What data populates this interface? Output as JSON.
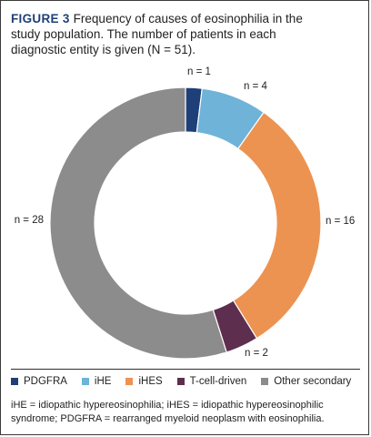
{
  "figure": {
    "label": "FIGURE 3",
    "caption": "Frequency of causes of eosinophilia in the study population. The number of patients in each diagnostic entity is given (N = 51)."
  },
  "chart_data": {
    "type": "pie",
    "style": "donut",
    "categories": [
      "PDGFRA",
      "iHE",
      "iHES",
      "T-cell-driven",
      "Other secondary"
    ],
    "values": [
      1,
      4,
      16,
      2,
      28
    ],
    "slice_labels": [
      "n = 1",
      "n = 4",
      "n = 16",
      "n = 2",
      "n = 28"
    ],
    "colors": [
      "#1f3f78",
      "#6fb3d8",
      "#ec9352",
      "#5e2e4f",
      "#8c8c8c"
    ],
    "total": 51,
    "legend_position": "bottom"
  },
  "footnote": "iHE = idiopathic hypereosinophilia; iHES = idiopathic hypereosinophilic syndrome; PDGFRA = rearranged myeloid neoplasm with eosinophilia."
}
